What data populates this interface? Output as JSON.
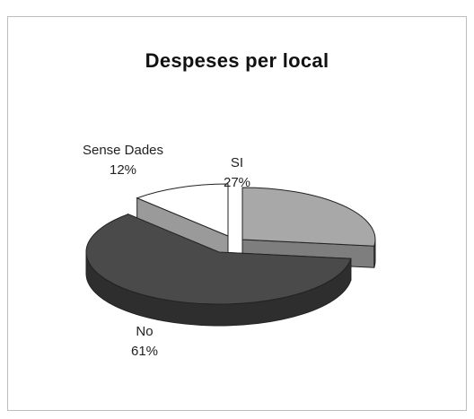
{
  "chart_data": {
    "type": "pie",
    "title": "Despeses per local",
    "slices": [
      {
        "label": "SI",
        "value": 27,
        "display": "27%",
        "color": "#a8a8a8"
      },
      {
        "label": "No",
        "value": 61,
        "display": "61%",
        "color": "#4a4a4a"
      },
      {
        "label": "Sense Dades",
        "value": 12,
        "display": "12%",
        "color": "#ffffff"
      }
    ],
    "exploded": true,
    "style": "3d"
  }
}
